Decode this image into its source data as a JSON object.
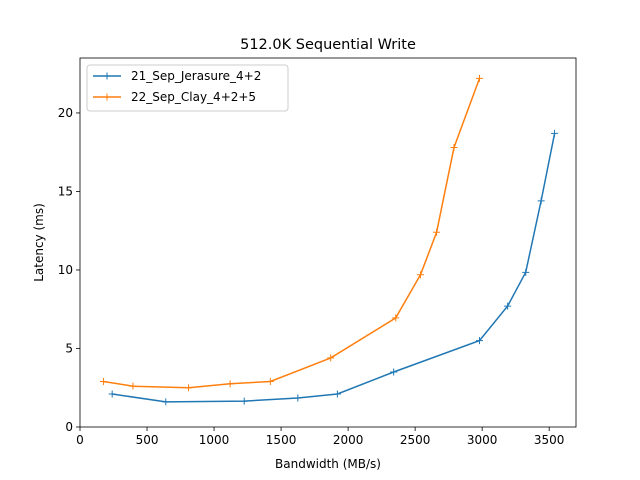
{
  "chart_data": {
    "type": "line",
    "title": "512.0K  Sequential Write",
    "xlabel": "Bandwidth (MB/s)",
    "ylabel": "Latency (ms)",
    "xlim": [
      0,
      3700
    ],
    "ylim": [
      0,
      23.5
    ],
    "xticks": [
      0,
      500,
      1000,
      1500,
      2000,
      2500,
      3000,
      3500
    ],
    "yticks": [
      0,
      5,
      10,
      15,
      20
    ],
    "grid": false,
    "legend_position": "top-left",
    "marker": "+",
    "series": [
      {
        "name": "21_Sep_Jerasure_4+2",
        "color": "#1f77b4",
        "x": [
          240,
          640,
          1225,
          1625,
          1920,
          2340,
          2980,
          3190,
          3325,
          3440,
          3540
        ],
        "y": [
          2.1,
          1.6,
          1.65,
          1.85,
          2.1,
          3.5,
          5.5,
          7.7,
          9.85,
          14.4,
          18.7
        ]
      },
      {
        "name": "22_Sep_Clay_4+2+5",
        "color": "#ff7f0e",
        "x": [
          175,
          395,
          810,
          1120,
          1420,
          1870,
          2355,
          2540,
          2660,
          2790,
          2980
        ],
        "y": [
          2.9,
          2.6,
          2.5,
          2.75,
          2.9,
          4.4,
          6.95,
          9.7,
          12.4,
          17.8,
          22.2
        ]
      }
    ]
  }
}
